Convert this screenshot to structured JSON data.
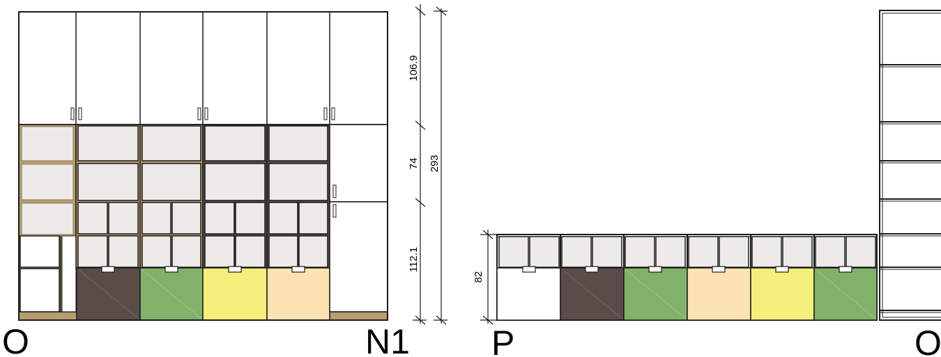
{
  "labels": {
    "left_start": "O",
    "left_end": "N1",
    "right_start": "P",
    "right_end": "O"
  },
  "dimensions": {
    "upper_height": "106.9",
    "middle_height": "74",
    "lower_height": "112.1",
    "total_height": "293",
    "base_height": "82"
  },
  "colors": {
    "line": "#1a1a1a",
    "panel_gray": "#ecebea",
    "wood": "#b79d72",
    "dark_brown": "#5a4d49",
    "green": "#82b26a",
    "yellow": "#f5ef7c",
    "peach": "#fde3b3",
    "white": "#ffffff"
  }
}
